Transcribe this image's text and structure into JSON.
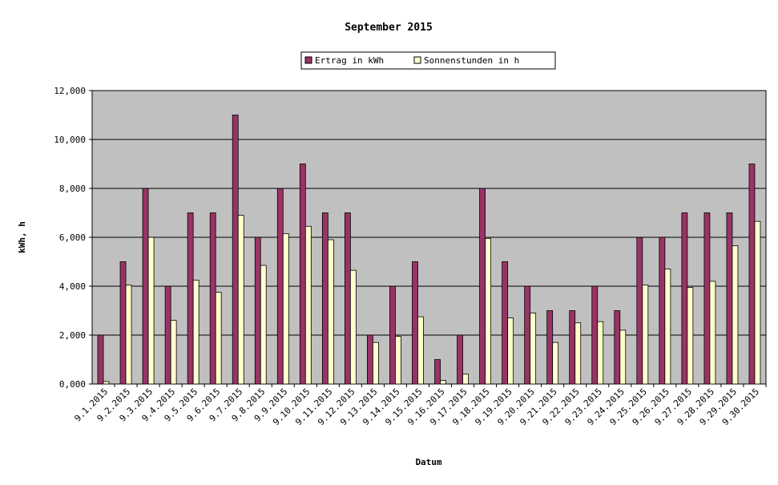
{
  "chart_data": {
    "type": "bar",
    "title": "September 2015",
    "xlabel": "Datum",
    "ylabel": "kWh, h",
    "ylim": [
      0,
      12
    ],
    "yticks": [
      "0,000",
      "2,000",
      "4,000",
      "6,000",
      "8,000",
      "10,000",
      "12,000"
    ],
    "grid": true,
    "legend_position": "top-center",
    "plot_background": "#c0c0c0",
    "categories": [
      "9.1.2015",
      "9.2.2015",
      "9.3.2015",
      "9.4.2015",
      "9.5.2015",
      "9.6.2015",
      "9.7.2015",
      "9.8.2015",
      "9.9.2015",
      "9.10.2015",
      "9.11.2015",
      "9.12.2015",
      "9.13.2015",
      "9.14.2015",
      "9.15.2015",
      "9.16.2015",
      "9.17.2015",
      "9.18.2015",
      "9.19.2015",
      "9.20.2015",
      "9.21.2015",
      "9.22.2015",
      "9.23.2015",
      "9.24.2015",
      "9.25.2015",
      "9.26.2015",
      "9.27.2015",
      "9.28.2015",
      "9.29.2015",
      "9.30.2015"
    ],
    "series": [
      {
        "name": "Ertrag in kWh",
        "color": "#993366",
        "values": [
          2,
          5,
          8,
          4,
          7,
          7,
          11,
          6,
          8,
          9,
          7,
          7,
          2,
          4,
          5,
          1,
          2,
          8,
          5,
          4,
          3,
          3,
          4,
          3,
          6,
          6,
          7,
          7,
          7,
          9
        ]
      },
      {
        "name": "Sonnenstunden in h",
        "color": "#ffffcc",
        "values": [
          0.1,
          4.05,
          6.0,
          2.6,
          4.25,
          3.75,
          6.9,
          4.85,
          6.15,
          6.45,
          5.9,
          4.65,
          1.7,
          1.95,
          2.75,
          0.15,
          0.4,
          5.95,
          2.7,
          2.9,
          1.7,
          2.5,
          2.55,
          2.2,
          4.05,
          4.7,
          3.95,
          4.2,
          5.65,
          6.65
        ]
      }
    ]
  }
}
